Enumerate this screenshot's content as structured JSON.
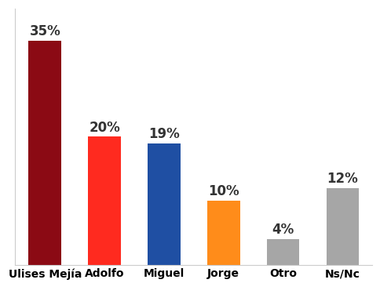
{
  "chart_data": {
    "type": "bar",
    "categories": [
      "Ulises Mejía",
      "Adolfo",
      "Miguel",
      "Jorge",
      "Otro",
      "Ns/Nc"
    ],
    "values": [
      35,
      20,
      19,
      10,
      4,
      12
    ],
    "value_labels": [
      "35%",
      "20%",
      "19%",
      "10%",
      "4%",
      "12%"
    ],
    "colors": [
      "#8b0a14",
      "#ff2a1f",
      "#1f4fa3",
      "#ff8c1a",
      "#a6a6a6",
      "#a6a6a6"
    ],
    "ylim": [
      0,
      40
    ],
    "data_labels": true,
    "tick_labels": "x",
    "grid": false
  }
}
